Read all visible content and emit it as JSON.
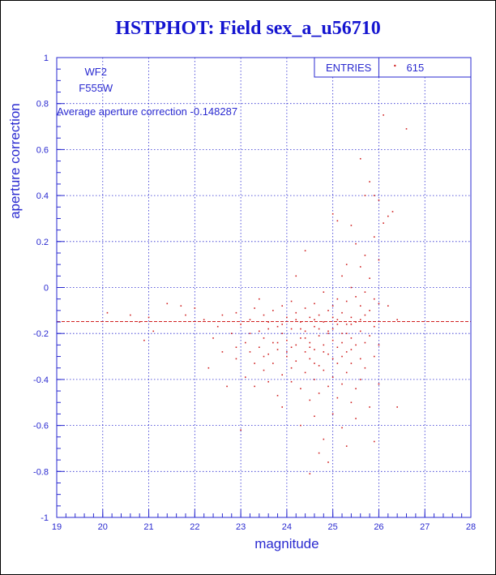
{
  "chart_data": {
    "type": "scatter",
    "title": "HSTPHOT: Field sex_a_u56710",
    "xlabel": "magnitude",
    "ylabel": "aperture correction",
    "xlim": [
      19,
      28
    ],
    "ylim": [
      -1,
      1
    ],
    "x_ticks": [
      "19",
      "20",
      "21",
      "22",
      "23",
      "24",
      "25",
      "26",
      "27",
      "28"
    ],
    "y_ticks": [
      "-1",
      "-0.8",
      "-0.6",
      "-0.4",
      "-0.2",
      "0",
      "0.2",
      "0.4",
      "0.6",
      "0.8",
      "1"
    ],
    "grid": true,
    "point_color": "#d02020",
    "axis_color": "#2a2ad0",
    "annotations": {
      "camera": "WF2",
      "filter": "F555W",
      "average_text": "Average aperture correction -0.148287"
    },
    "average_line_y": -0.148287,
    "stats_box": {
      "label": "ENTRIES",
      "value": "615"
    },
    "points": [
      [
        20.1,
        -0.11
      ],
      [
        20.6,
        -0.12
      ],
      [
        20.8,
        -0.15
      ],
      [
        20.9,
        -0.23
      ],
      [
        21.0,
        -0.13
      ],
      [
        21.1,
        -0.19
      ],
      [
        21.4,
        -0.07
      ],
      [
        21.7,
        -0.08
      ],
      [
        21.8,
        -0.12
      ],
      [
        22.0,
        -0.09
      ],
      [
        22.2,
        -0.14
      ],
      [
        22.3,
        -0.35
      ],
      [
        22.4,
        -0.22
      ],
      [
        22.5,
        -0.17
      ],
      [
        22.6,
        -0.28
      ],
      [
        22.6,
        -0.12
      ],
      [
        22.7,
        -0.43
      ],
      [
        22.8,
        -0.2
      ],
      [
        22.9,
        -0.11
      ],
      [
        22.9,
        -0.31
      ],
      [
        23.0,
        -0.62
      ],
      [
        23.0,
        -0.16
      ],
      [
        23.1,
        -0.24
      ],
      [
        23.1,
        -0.39
      ],
      [
        23.2,
        -0.14
      ],
      [
        23.2,
        -0.28
      ],
      [
        23.3,
        -0.09
      ],
      [
        23.3,
        -0.33
      ],
      [
        23.3,
        -0.43
      ],
      [
        23.4,
        -0.05
      ],
      [
        23.4,
        -0.19
      ],
      [
        23.4,
        -0.26
      ],
      [
        23.5,
        -0.12
      ],
      [
        23.5,
        -0.22
      ],
      [
        23.5,
        -0.36
      ],
      [
        23.6,
        -0.15
      ],
      [
        23.6,
        -0.29
      ],
      [
        23.6,
        -0.41
      ],
      [
        23.7,
        -0.1
      ],
      [
        23.7,
        -0.24
      ],
      [
        23.7,
        -0.33
      ],
      [
        23.8,
        -0.17
      ],
      [
        23.8,
        -0.27
      ],
      [
        23.8,
        -0.47
      ],
      [
        23.9,
        -0.08
      ],
      [
        23.9,
        -0.2
      ],
      [
        23.9,
        -0.38
      ],
      [
        23.9,
        -0.52
      ],
      [
        24.0,
        -0.13
      ],
      [
        24.0,
        -0.23
      ],
      [
        24.0,
        -0.3
      ],
      [
        24.1,
        -0.06
      ],
      [
        24.1,
        -0.18
      ],
      [
        24.1,
        -0.35
      ],
      [
        24.1,
        -0.41
      ],
      [
        24.2,
        -0.11
      ],
      [
        24.2,
        -0.25
      ],
      [
        24.2,
        -0.32
      ],
      [
        24.2,
        0.05
      ],
      [
        24.3,
        -0.15
      ],
      [
        24.3,
        -0.22
      ],
      [
        24.3,
        -0.44
      ],
      [
        24.3,
        -0.6
      ],
      [
        24.4,
        -0.09
      ],
      [
        24.4,
        -0.19
      ],
      [
        24.4,
        -0.28
      ],
      [
        24.4,
        -0.37
      ],
      [
        24.4,
        0.16
      ],
      [
        24.5,
        -0.13
      ],
      [
        24.5,
        -0.24
      ],
      [
        24.5,
        -0.31
      ],
      [
        24.5,
        -0.49
      ],
      [
        24.5,
        -0.81
      ],
      [
        24.6,
        -0.07
      ],
      [
        24.6,
        -0.17
      ],
      [
        24.6,
        -0.27
      ],
      [
        24.6,
        -0.4
      ],
      [
        24.6,
        -0.56
      ],
      [
        24.7,
        -0.12
      ],
      [
        24.7,
        -0.21
      ],
      [
        24.7,
        -0.34
      ],
      [
        24.7,
        -0.46
      ],
      [
        24.7,
        -0.72
      ],
      [
        24.8,
        -0.02
      ],
      [
        24.8,
        -0.15
      ],
      [
        24.8,
        -0.25
      ],
      [
        24.8,
        -0.36
      ],
      [
        24.8,
        -0.66
      ],
      [
        24.9,
        -0.1
      ],
      [
        24.9,
        -0.19
      ],
      [
        24.9,
        -0.29
      ],
      [
        24.9,
        -0.43
      ],
      [
        24.9,
        -0.76
      ],
      [
        25.0,
        0.32
      ],
      [
        25.0,
        -0.08
      ],
      [
        25.0,
        -0.18
      ],
      [
        25.0,
        -0.23
      ],
      [
        25.0,
        -0.39
      ],
      [
        25.0,
        -0.55
      ],
      [
        25.1,
        0.29
      ],
      [
        25.1,
        -0.05
      ],
      [
        25.1,
        -0.14
      ],
      [
        25.1,
        -0.26
      ],
      [
        25.1,
        -0.33
      ],
      [
        25.1,
        -0.48
      ],
      [
        25.2,
        0.05
      ],
      [
        25.2,
        -0.11
      ],
      [
        25.2,
        -0.2
      ],
      [
        25.2,
        -0.3
      ],
      [
        25.2,
        -0.42
      ],
      [
        25.2,
        -0.61
      ],
      [
        25.3,
        0.1
      ],
      [
        25.3,
        -0.06
      ],
      [
        25.3,
        -0.16
      ],
      [
        25.3,
        -0.28
      ],
      [
        25.3,
        -0.37
      ],
      [
        25.3,
        -0.69
      ],
      [
        25.4,
        0.27
      ],
      [
        25.4,
        0.0
      ],
      [
        25.4,
        -0.13
      ],
      [
        25.4,
        -0.22
      ],
      [
        25.4,
        -0.33
      ],
      [
        25.4,
        -0.5
      ],
      [
        25.5,
        0.19
      ],
      [
        25.5,
        -0.04
      ],
      [
        25.5,
        -0.15
      ],
      [
        25.5,
        -0.25
      ],
      [
        25.5,
        -0.44
      ],
      [
        25.5,
        -0.57
      ],
      [
        25.6,
        0.56
      ],
      [
        25.6,
        0.09
      ],
      [
        25.6,
        -0.08
      ],
      [
        25.6,
        -0.19
      ],
      [
        25.6,
        -0.31
      ],
      [
        25.6,
        -0.4
      ],
      [
        25.7,
        0.4
      ],
      [
        25.7,
        0.14
      ],
      [
        25.7,
        -0.02
      ],
      [
        25.7,
        -0.12
      ],
      [
        25.7,
        -0.24
      ],
      [
        25.7,
        -0.35
      ],
      [
        25.8,
        0.46
      ],
      [
        25.8,
        0.04
      ],
      [
        25.8,
        -0.1
      ],
      [
        25.8,
        -0.21
      ],
      [
        25.8,
        -0.52
      ],
      [
        25.9,
        0.4
      ],
      [
        25.9,
        0.22
      ],
      [
        25.9,
        -0.05
      ],
      [
        25.9,
        -0.17
      ],
      [
        25.9,
        -0.3
      ],
      [
        25.9,
        -0.67
      ],
      [
        26.0,
        0.38
      ],
      [
        26.0,
        0.12
      ],
      [
        26.0,
        -0.07
      ],
      [
        26.0,
        -0.25
      ],
      [
        26.0,
        -0.42
      ],
      [
        26.1,
        0.75
      ],
      [
        26.1,
        0.28
      ],
      [
        26.2,
        0.31
      ],
      [
        26.2,
        -0.08
      ],
      [
        26.3,
        0.33
      ],
      [
        26.4,
        -0.52
      ],
      [
        26.4,
        -0.14
      ],
      [
        26.6,
        0.69
      ],
      [
        23.9,
        -0.16
      ],
      [
        24.2,
        -0.14
      ],
      [
        24.6,
        -0.14
      ],
      [
        25.0,
        -0.13
      ],
      [
        25.4,
        -0.16
      ],
      [
        24.3,
        -0.18
      ],
      [
        24.7,
        -0.18
      ],
      [
        23.6,
        -0.18
      ],
      [
        25.1,
        -0.16
      ],
      [
        24.9,
        -0.2
      ],
      [
        24.4,
        -0.22
      ],
      [
        25.3,
        -0.2
      ],
      [
        23.8,
        -0.24
      ],
      [
        24.0,
        -0.28
      ],
      [
        24.8,
        -0.28
      ],
      [
        25.2,
        -0.24
      ],
      [
        24.5,
        -0.26
      ],
      [
        25.6,
        -0.14
      ],
      [
        23.2,
        -0.2
      ],
      [
        22.9,
        -0.26
      ],
      [
        24.1,
        -0.26
      ],
      [
        25.4,
        -0.27
      ],
      [
        23.5,
        -0.3
      ],
      [
        24.6,
        -0.33
      ],
      [
        25.0,
        -0.31
      ]
    ]
  }
}
